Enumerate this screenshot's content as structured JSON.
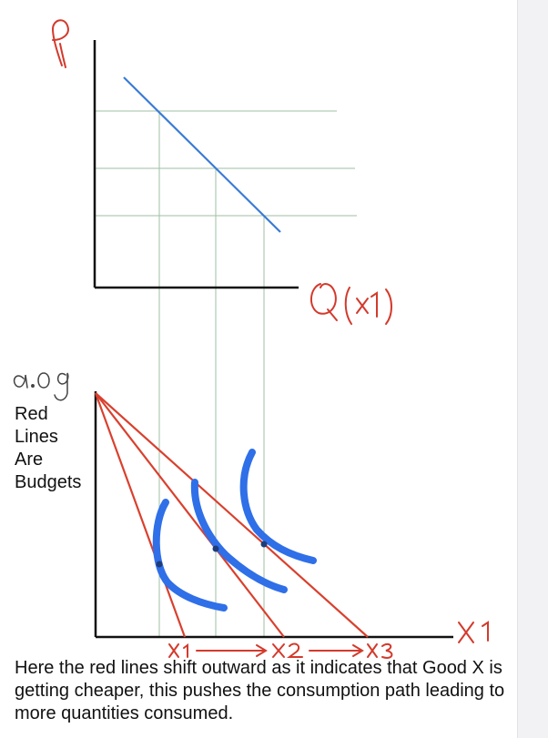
{
  "top_graph": {
    "y_label": "P",
    "x_label": "Q(x₁)"
  },
  "bottom_graph": {
    "y_label": "a.og",
    "x_label": "X₁",
    "legend": [
      "Red",
      "Lines",
      "Are",
      "Budgets"
    ],
    "marks": [
      "X₁",
      "X₂",
      "X₃"
    ]
  },
  "caption": "Here the red lines shift outward as it indicates that Good X is getting cheaper, this pushes the consumption path leading to more quantities consumed.",
  "colors": {
    "demand_line": "#3a7bd5",
    "budget_lines": "#d9402e",
    "indifference_curves": "#2f6fe8",
    "handwriting": "#d33a2c",
    "guides": "#9fbfa3",
    "axes": "#111111"
  }
}
